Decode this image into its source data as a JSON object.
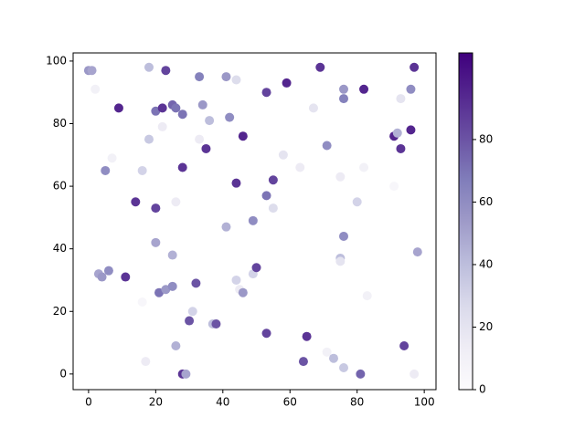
{
  "chart_data": {
    "type": "scatter",
    "colormap": "Purples",
    "x": [
      0,
      1,
      2,
      7,
      5,
      9,
      3,
      4,
      6,
      11,
      14,
      16,
      16,
      17,
      18,
      18,
      20,
      20,
      20,
      21,
      22,
      22,
      23,
      23,
      25,
      26,
      25,
      25,
      26,
      26,
      28,
      28,
      28,
      29,
      30,
      31,
      32,
      33,
      33,
      34,
      35,
      36,
      37,
      38,
      41,
      41,
      42,
      44,
      44,
      44,
      45,
      46,
      46,
      49,
      49,
      50,
      53,
      53,
      53,
      55,
      55,
      58,
      59,
      63,
      64,
      65,
      67,
      69,
      71,
      71,
      73,
      75,
      75,
      75,
      76,
      76,
      76,
      76,
      80,
      81,
      82,
      82,
      83,
      91,
      91,
      92,
      93,
      93,
      94,
      96,
      96,
      97,
      97,
      98
    ],
    "y": [
      97,
      97,
      91,
      69,
      65,
      85,
      32,
      31,
      33,
      31,
      55,
      65,
      23,
      4,
      98,
      75,
      84,
      53,
      42,
      26,
      85,
      79,
      97,
      27,
      86,
      85,
      38,
      28,
      55,
      9,
      83,
      66,
      0,
      0,
      17,
      20,
      29,
      95,
      75,
      86,
      72,
      81,
      16,
      16,
      95,
      47,
      82,
      61,
      94,
      30,
      27,
      26,
      76,
      49,
      32,
      34,
      90,
      57,
      13,
      62,
      53,
      70,
      93,
      66,
      4,
      12,
      85,
      98,
      73,
      7,
      5,
      63,
      37,
      36,
      91,
      88,
      44,
      2,
      55,
      0,
      91,
      66,
      25,
      60,
      76,
      77,
      88,
      72,
      9,
      91,
      78,
      98,
      0,
      39
    ],
    "c": [
      55,
      50,
      10,
      10,
      60,
      95,
      50,
      55,
      60,
      90,
      90,
      30,
      5,
      15,
      40,
      35,
      70,
      85,
      50,
      70,
      90,
      15,
      85,
      55,
      75,
      70,
      45,
      60,
      15,
      45,
      70,
      90,
      90,
      50,
      80,
      30,
      80,
      65,
      15,
      55,
      90,
      40,
      40,
      80,
      55,
      45,
      60,
      90,
      25,
      30,
      15,
      55,
      95,
      60,
      30,
      85,
      85,
      70,
      85,
      85,
      25,
      20,
      95,
      15,
      80,
      90,
      20,
      90,
      60,
      10,
      40,
      15,
      40,
      20,
      55,
      65,
      60,
      35,
      30,
      75,
      95,
      10,
      10,
      5,
      95,
      45,
      20,
      90,
      85,
      60,
      95,
      90,
      15,
      50
    ],
    "xlim": [
      -4.6,
      103.5
    ],
    "ylim": [
      -5,
      102.6
    ],
    "xticks": [
      0,
      20,
      40,
      60,
      80,
      100
    ],
    "yticks": [
      0,
      20,
      40,
      60,
      80,
      100
    ],
    "clim": [
      0,
      107.7
    ],
    "cticks": [
      0,
      20,
      40,
      60,
      80
    ]
  }
}
